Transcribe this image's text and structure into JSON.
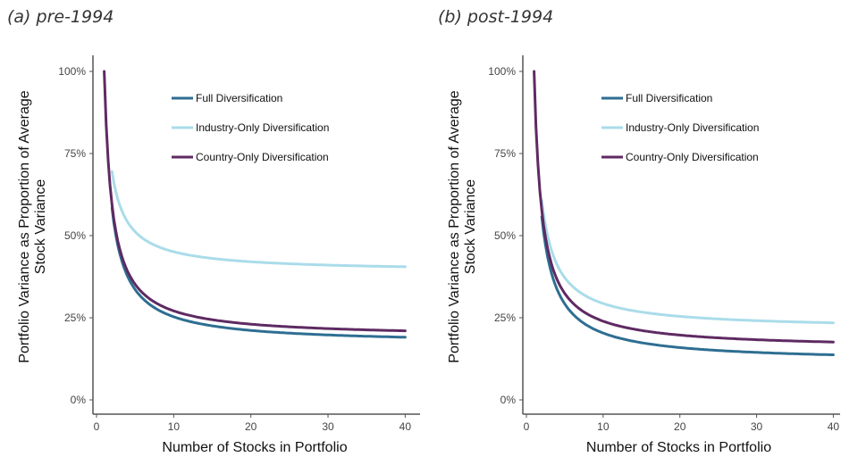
{
  "chart_data": [
    {
      "type": "line",
      "panel_title": "(a) pre-1994",
      "xlabel": "Number of Stocks in Portfolio",
      "ylabel": [
        "Portfolio Variance as Proportion of Average",
        "Stock Variance"
      ],
      "xlim": [
        0,
        41
      ],
      "ylim": [
        0,
        1
      ],
      "xticks": [
        0,
        10,
        20,
        30,
        40
      ],
      "xtick_labels": [
        "0",
        "10",
        "20",
        "30",
        "40"
      ],
      "yticks": [
        0,
        0.25,
        0.5,
        0.75,
        1.0
      ],
      "ytick_labels": [
        "0%",
        "25%",
        "50%",
        "75%",
        "100%"
      ],
      "grid": false,
      "legend_position": "top-right",
      "series": [
        {
          "name": "Full Diversification",
          "color": "#2e6e92",
          "limit": 0.17,
          "start_x": 2
        },
        {
          "name": "Industry-Only Diversification",
          "color": "#aadcea",
          "limit": 0.39,
          "start_x": 2
        },
        {
          "name": "Country-Only Diversification",
          "color": "#5e2a62",
          "limit": 0.19,
          "start_x": 1
        }
      ]
    },
    {
      "type": "line",
      "panel_title": "(b) post-1994",
      "xlabel": "Number of Stocks in Portfolio",
      "ylabel": [
        "Portfolio Variance as Proportion of Average",
        "Stock Variance"
      ],
      "xlim": [
        0,
        41
      ],
      "ylim": [
        0,
        1
      ],
      "xticks": [
        0,
        10,
        20,
        30,
        40
      ],
      "xtick_labels": [
        "0",
        "10",
        "20",
        "30",
        "40"
      ],
      "yticks": [
        0,
        0.25,
        0.5,
        0.75,
        1.0
      ],
      "ytick_labels": [
        "0%",
        "25%",
        "50%",
        "75%",
        "100%"
      ],
      "grid": false,
      "legend_position": "top-right",
      "series": [
        {
          "name": "Full Diversification",
          "color": "#2e6e92",
          "limit": 0.115,
          "start_x": 2
        },
        {
          "name": "Industry-Only Diversification",
          "color": "#aadcea",
          "limit": 0.215,
          "start_x": 2
        },
        {
          "name": "Country-Only Diversification",
          "color": "#5e2a62",
          "limit": 0.155,
          "start_x": 1
        }
      ]
    }
  ]
}
